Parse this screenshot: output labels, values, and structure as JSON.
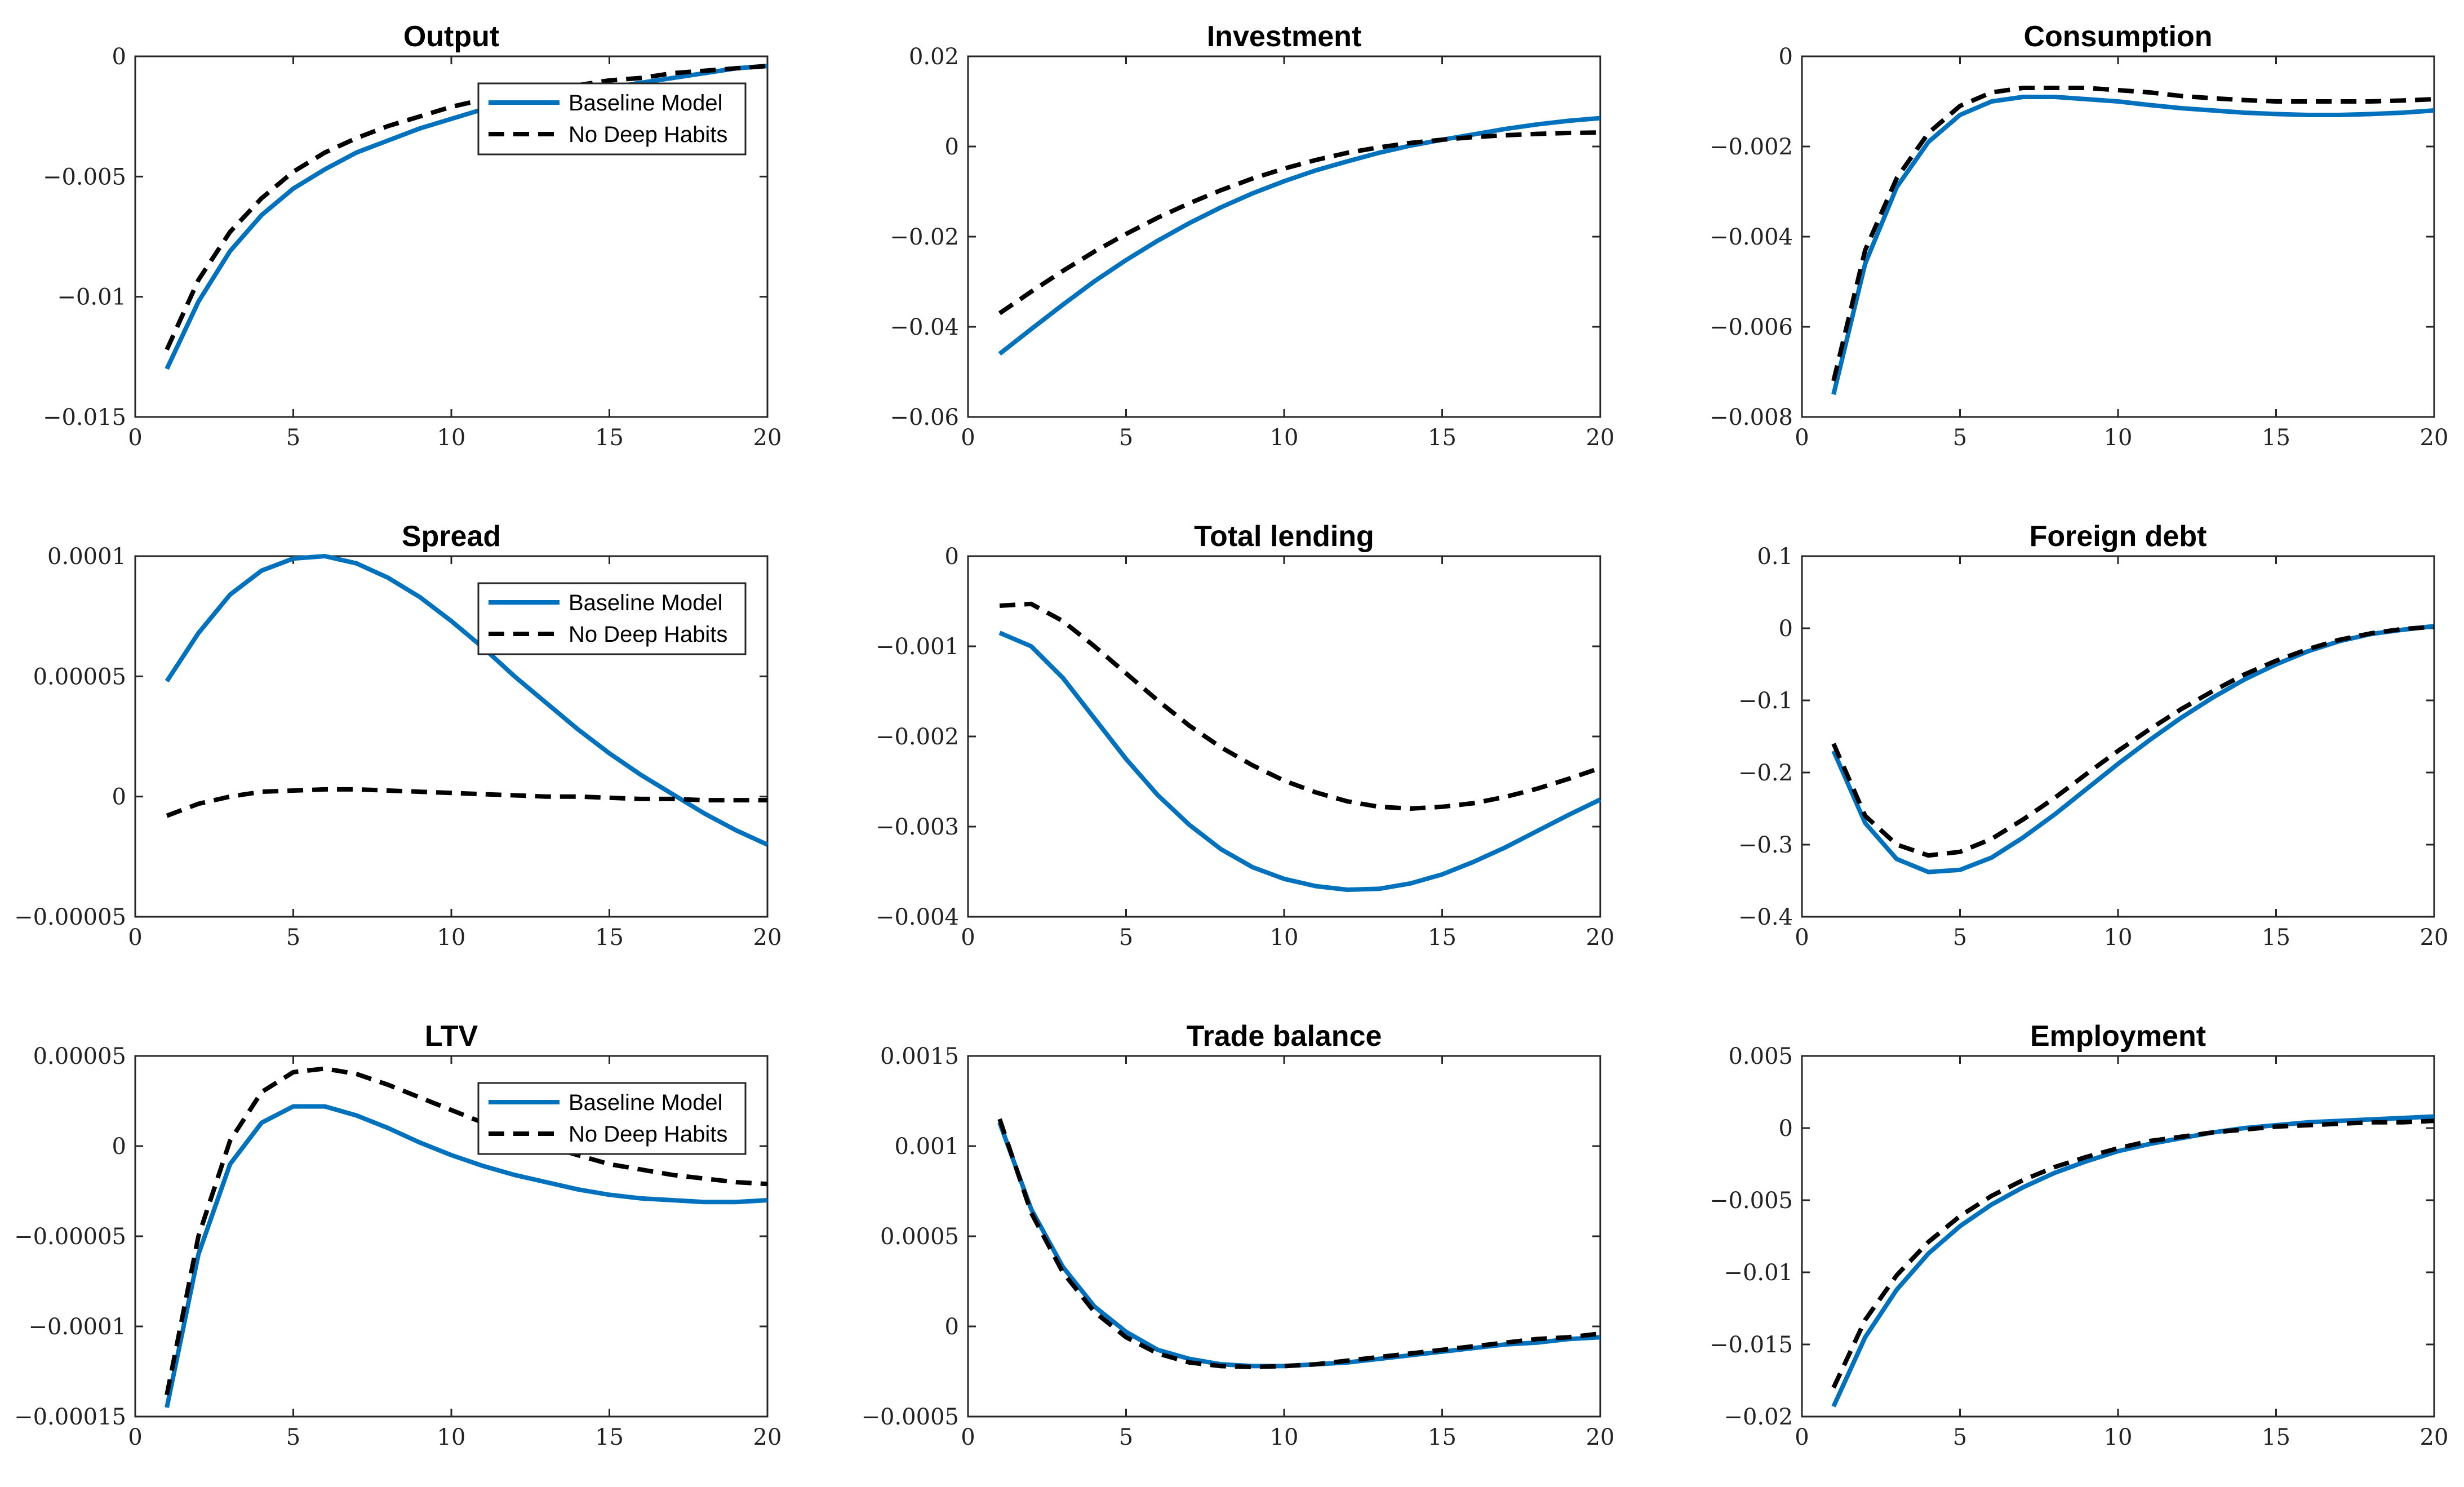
{
  "chart_data": [
    {
      "type": "line",
      "title": "Output",
      "xlim": [
        0,
        20
      ],
      "ylim": [
        -0.015,
        0
      ],
      "x_ticks": [
        0,
        5,
        10,
        15,
        20
      ],
      "x_tick_labels": [
        "0",
        "5",
        "10",
        "15",
        "20"
      ],
      "y_ticks": [
        0,
        -0.005,
        -0.01,
        -0.015
      ],
      "y_tick_labels": [
        "0",
        "−0.005",
        "−0.01",
        "−0.015"
      ],
      "legend": true,
      "legend_position": "top-right",
      "x": [
        1,
        2,
        3,
        4,
        5,
        6,
        7,
        8,
        9,
        10,
        11,
        12,
        13,
        14,
        15,
        16,
        17,
        18,
        19,
        20
      ],
      "series": [
        {
          "name": "Baseline Model",
          "color": "#0072BD",
          "dash": "solid",
          "values": [
            -0.013,
            -0.0102,
            -0.0081,
            -0.0066,
            -0.0055,
            -0.0047,
            -0.004,
            -0.0035,
            -0.003,
            -0.0026,
            -0.0022,
            -0.0019,
            -0.0017,
            -0.0015,
            -0.0013,
            -0.0011,
            -0.0009,
            -0.0007,
            -0.0005,
            -0.0004
          ]
        },
        {
          "name": "No Deep Habits",
          "color": "#000000",
          "dash": "dashed",
          "values": [
            -0.0122,
            -0.0093,
            -0.0073,
            -0.0059,
            -0.0048,
            -0.004,
            -0.0034,
            -0.0029,
            -0.0025,
            -0.0021,
            -0.0018,
            -0.0016,
            -0.0014,
            -0.0012,
            -0.001,
            -0.0009,
            -0.0007,
            -0.0006,
            -0.0005,
            -0.0004
          ]
        }
      ]
    },
    {
      "type": "line",
      "title": "Investment",
      "xlim": [
        0,
        20
      ],
      "ylim": [
        -0.06,
        0.02
      ],
      "x_ticks": [
        0,
        5,
        10,
        15,
        20
      ],
      "x_tick_labels": [
        "0",
        "5",
        "10",
        "15",
        "20"
      ],
      "y_ticks": [
        0.02,
        0,
        -0.02,
        -0.04,
        -0.06
      ],
      "y_tick_labels": [
        "0.02",
        "0",
        "−0.02",
        "−0.04",
        "−0.06"
      ],
      "legend": false,
      "x": [
        1,
        2,
        3,
        4,
        5,
        6,
        7,
        8,
        9,
        10,
        11,
        12,
        13,
        14,
        15,
        16,
        17,
        18,
        19,
        20
      ],
      "series": [
        {
          "name": "Baseline Model",
          "color": "#0072BD",
          "dash": "solid",
          "values": [
            -0.046,
            -0.0405,
            -0.0351,
            -0.0299,
            -0.0252,
            -0.0209,
            -0.017,
            -0.0135,
            -0.0104,
            -0.0077,
            -0.0053,
            -0.0033,
            -0.0014,
            0.0002,
            0.0015,
            0.0027,
            0.0039,
            0.0049,
            0.0057,
            0.0063
          ]
        },
        {
          "name": "No Deep Habits",
          "color": "#000000",
          "dash": "dashed",
          "values": [
            -0.037,
            -0.0322,
            -0.0276,
            -0.0233,
            -0.0194,
            -0.0158,
            -0.0126,
            -0.0097,
            -0.0071,
            -0.0049,
            -0.003,
            -0.0014,
            -0.0002,
            0.0008,
            0.0015,
            0.0021,
            0.0025,
            0.0028,
            0.003,
            0.0031
          ]
        }
      ]
    },
    {
      "type": "line",
      "title": "Consumption",
      "xlim": [
        0,
        20
      ],
      "ylim": [
        -0.008,
        0
      ],
      "x_ticks": [
        0,
        5,
        10,
        15,
        20
      ],
      "x_tick_labels": [
        "0",
        "5",
        "10",
        "15",
        "20"
      ],
      "y_ticks": [
        0,
        -0.002,
        -0.004,
        -0.006,
        -0.008
      ],
      "y_tick_labels": [
        "0",
        "−0.002",
        "−0.004",
        "−0.006",
        "−0.008"
      ],
      "legend": false,
      "x": [
        1,
        2,
        3,
        4,
        5,
        6,
        7,
        8,
        9,
        10,
        11,
        12,
        13,
        14,
        15,
        16,
        17,
        18,
        19,
        20
      ],
      "series": [
        {
          "name": "Baseline Model",
          "color": "#0072BD",
          "dash": "solid",
          "values": [
            -0.0075,
            -0.0046,
            -0.0029,
            -0.0019,
            -0.0013,
            -0.001,
            -0.0009,
            -0.0009,
            -0.00095,
            -0.001,
            -0.00108,
            -0.00115,
            -0.0012,
            -0.00125,
            -0.00128,
            -0.0013,
            -0.0013,
            -0.00128,
            -0.00125,
            -0.0012
          ]
        },
        {
          "name": "No Deep Habits",
          "color": "#000000",
          "dash": "dashed",
          "values": [
            -0.0072,
            -0.0043,
            -0.0027,
            -0.0017,
            -0.0011,
            -0.0008,
            -0.0007,
            -0.0007,
            -0.0007,
            -0.00075,
            -0.0008,
            -0.00088,
            -0.00093,
            -0.00097,
            -0.001,
            -0.001,
            -0.001,
            -0.001,
            -0.00098,
            -0.00095
          ]
        }
      ]
    },
    {
      "type": "line",
      "title": "Spread",
      "xlim": [
        0,
        20
      ],
      "ylim": [
        -5e-05,
        0.0001
      ],
      "x_ticks": [
        0,
        5,
        10,
        15,
        20
      ],
      "x_tick_labels": [
        "0",
        "5",
        "10",
        "15",
        "20"
      ],
      "y_ticks": [
        0.0001,
        5e-05,
        0,
        -5e-05
      ],
      "y_tick_labels": [
        "0.0001",
        "0.00005",
        "0",
        "−0.00005"
      ],
      "legend": true,
      "legend_position": "top-right",
      "x": [
        1,
        2,
        3,
        4,
        5,
        6,
        7,
        8,
        9,
        10,
        11,
        12,
        13,
        14,
        15,
        16,
        17,
        18,
        19,
        20
      ],
      "series": [
        {
          "name": "Baseline Model",
          "color": "#0072BD",
          "dash": "solid",
          "values": [
            4.8e-05,
            6.8e-05,
            8.4e-05,
            9.4e-05,
            9.9e-05,
            0.0001,
            9.7e-05,
            9.1e-05,
            8.3e-05,
            7.3e-05,
            6.2e-05,
            5e-05,
            3.9e-05,
            2.8e-05,
            1.8e-05,
            9e-06,
            1e-06,
            -7e-06,
            -1.4e-05,
            -2e-05
          ]
        },
        {
          "name": "No Deep Habits",
          "color": "#000000",
          "dash": "dashed",
          "values": [
            -8e-06,
            -3e-06,
            0.0,
            2e-06,
            2.5e-06,
            3e-06,
            3e-06,
            2.5e-06,
            2e-06,
            1.5e-06,
            1e-06,
            5e-07,
            0.0,
            0.0,
            -5e-07,
            -1e-06,
            -1e-06,
            -1.5e-06,
            -1.5e-06,
            -1.5e-06
          ]
        }
      ]
    },
    {
      "type": "line",
      "title": "Total lending",
      "xlim": [
        0,
        20
      ],
      "ylim": [
        -0.004,
        0
      ],
      "x_ticks": [
        0,
        5,
        10,
        15,
        20
      ],
      "x_tick_labels": [
        "0",
        "5",
        "10",
        "15",
        "20"
      ],
      "y_ticks": [
        0,
        -0.001,
        -0.002,
        -0.003,
        -0.004
      ],
      "y_tick_labels": [
        "0",
        "−0.001",
        "−0.002",
        "−0.003",
        "−0.004"
      ],
      "legend": false,
      "x": [
        1,
        2,
        3,
        4,
        5,
        6,
        7,
        8,
        9,
        10,
        11,
        12,
        13,
        14,
        15,
        16,
        17,
        18,
        19,
        20
      ],
      "series": [
        {
          "name": "Baseline Model",
          "color": "#0072BD",
          "dash": "solid",
          "values": [
            -0.00085,
            -0.001,
            -0.00135,
            -0.0018,
            -0.00225,
            -0.00265,
            -0.00298,
            -0.00325,
            -0.00345,
            -0.00358,
            -0.00366,
            -0.0037,
            -0.00369,
            -0.00363,
            -0.00353,
            -0.00339,
            -0.00323,
            -0.00305,
            -0.00287,
            -0.0027
          ]
        },
        {
          "name": "No Deep Habits",
          "color": "#000000",
          "dash": "dashed",
          "values": [
            -0.00055,
            -0.00053,
            -0.00072,
            -0.001,
            -0.0013,
            -0.0016,
            -0.00188,
            -0.00212,
            -0.00232,
            -0.00249,
            -0.00262,
            -0.00272,
            -0.00278,
            -0.0028,
            -0.00278,
            -0.00274,
            -0.00267,
            -0.00258,
            -0.00247,
            -0.00235
          ]
        }
      ]
    },
    {
      "type": "line",
      "title": "Foreign debt",
      "xlim": [
        0,
        20
      ],
      "ylim": [
        -0.4,
        0.1
      ],
      "x_ticks": [
        0,
        5,
        10,
        15,
        20
      ],
      "x_tick_labels": [
        "0",
        "5",
        "10",
        "15",
        "20"
      ],
      "y_ticks": [
        0.1,
        0,
        -0.1,
        -0.2,
        -0.3,
        -0.4
      ],
      "y_tick_labels": [
        "0.1",
        "0",
        "−0.1",
        "−0.2",
        "−0.3",
        "−0.4"
      ],
      "legend": false,
      "x": [
        1,
        2,
        3,
        4,
        5,
        6,
        7,
        8,
        9,
        10,
        11,
        12,
        13,
        14,
        15,
        16,
        17,
        18,
        19,
        20
      ],
      "series": [
        {
          "name": "Baseline Model",
          "color": "#0072BD",
          "dash": "solid",
          "values": [
            -0.17,
            -0.27,
            -0.32,
            -0.338,
            -0.335,
            -0.318,
            -0.29,
            -0.258,
            -0.223,
            -0.188,
            -0.155,
            -0.124,
            -0.096,
            -0.071,
            -0.05,
            -0.032,
            -0.018,
            -0.008,
            -0.002,
            0.003
          ]
        },
        {
          "name": "No Deep Habits",
          "color": "#000000",
          "dash": "dashed",
          "values": [
            -0.16,
            -0.26,
            -0.3,
            -0.315,
            -0.31,
            -0.292,
            -0.265,
            -0.235,
            -0.202,
            -0.17,
            -0.14,
            -0.112,
            -0.087,
            -0.064,
            -0.045,
            -0.029,
            -0.016,
            -0.007,
            -0.001,
            0.002
          ]
        }
      ]
    },
    {
      "type": "line",
      "title": "LTV",
      "xlim": [
        0,
        20
      ],
      "ylim": [
        -0.00015,
        5e-05
      ],
      "x_ticks": [
        0,
        5,
        10,
        15,
        20
      ],
      "x_tick_labels": [
        "0",
        "5",
        "10",
        "15",
        "20"
      ],
      "y_ticks": [
        5e-05,
        0,
        -5e-05,
        -0.0001,
        -0.00015
      ],
      "y_tick_labels": [
        "0.00005",
        "0",
        "−0.00005",
        "−0.0001",
        "−0.00015"
      ],
      "legend": true,
      "legend_position": "top-right",
      "x": [
        1,
        2,
        3,
        4,
        5,
        6,
        7,
        8,
        9,
        10,
        11,
        12,
        13,
        14,
        15,
        16,
        17,
        18,
        19,
        20
      ],
      "series": [
        {
          "name": "Baseline Model",
          "color": "#0072BD",
          "dash": "solid",
          "values": [
            -0.000145,
            -6e-05,
            -1e-05,
            1.3e-05,
            2.2e-05,
            2.2e-05,
            1.7e-05,
            1e-05,
            2e-06,
            -5e-06,
            -1.1e-05,
            -1.6e-05,
            -2e-05,
            -2.4e-05,
            -2.7e-05,
            -2.9e-05,
            -3e-05,
            -3.1e-05,
            -3.1e-05,
            -3e-05
          ]
        },
        {
          "name": "No Deep Habits",
          "color": "#000000",
          "dash": "dashed",
          "values": [
            -0.000138,
            -5e-05,
            3e-06,
            3e-05,
            4.1e-05,
            4.3e-05,
            4e-05,
            3.4e-05,
            2.7e-05,
            2e-05,
            1.3e-05,
            6e-06,
            0.0,
            -5e-06,
            -1e-05,
            -1.3e-05,
            -1.6e-05,
            -1.8e-05,
            -2e-05,
            -2.1e-05
          ]
        }
      ]
    },
    {
      "type": "line",
      "title": "Trade balance",
      "xlim": [
        0,
        20
      ],
      "ylim": [
        -0.0005,
        0.0015
      ],
      "x_ticks": [
        0,
        5,
        10,
        15,
        20
      ],
      "x_tick_labels": [
        "0",
        "5",
        "10",
        "15",
        "20"
      ],
      "y_ticks": [
        0.0015,
        0.001,
        0.0005,
        0,
        -0.0005
      ],
      "y_tick_labels": [
        "0.0015",
        "0.001",
        "0.0005",
        "0",
        "−0.0005"
      ],
      "legend": false,
      "x": [
        1,
        2,
        3,
        4,
        5,
        6,
        7,
        8,
        9,
        10,
        11,
        12,
        13,
        14,
        15,
        16,
        17,
        18,
        19,
        20
      ],
      "series": [
        {
          "name": "Baseline Model",
          "color": "#0072BD",
          "dash": "solid",
          "values": [
            0.00113,
            0.00065,
            0.00033,
            0.00011,
            -3e-05,
            -0.00013,
            -0.00018,
            -0.00021,
            -0.00022,
            -0.00022,
            -0.00021,
            -0.0002,
            -0.00018,
            -0.00016,
            -0.00014,
            -0.00012,
            -0.0001,
            -9e-05,
            -7e-05,
            -6e-05
          ]
        },
        {
          "name": "No Deep Habits",
          "color": "#000000",
          "dash": "dashed",
          "values": [
            0.00115,
            0.00063,
            0.0003,
            8e-05,
            -6e-05,
            -0.00015,
            -0.0002,
            -0.00022,
            -0.000225,
            -0.00022,
            -0.00021,
            -0.00019,
            -0.00017,
            -0.00015,
            -0.00013,
            -0.00011,
            -9e-05,
            -7e-05,
            -6e-05,
            -4e-05
          ]
        }
      ]
    },
    {
      "type": "line",
      "title": "Employment",
      "xlim": [
        0,
        20
      ],
      "ylim": [
        -0.02,
        0.005
      ],
      "x_ticks": [
        0,
        5,
        10,
        15,
        20
      ],
      "x_tick_labels": [
        "0",
        "5",
        "10",
        "15",
        "20"
      ],
      "y_ticks": [
        0.005,
        0,
        -0.005,
        -0.01,
        -0.015,
        -0.02
      ],
      "y_tick_labels": [
        "0.005",
        "0",
        "−0.005",
        "−0.01",
        "−0.015",
        "−0.02"
      ],
      "legend": false,
      "x": [
        1,
        2,
        3,
        4,
        5,
        6,
        7,
        8,
        9,
        10,
        11,
        12,
        13,
        14,
        15,
        16,
        17,
        18,
        19,
        20
      ],
      "series": [
        {
          "name": "Baseline Model",
          "color": "#0072BD",
          "dash": "solid",
          "values": [
            -0.0193,
            -0.0145,
            -0.0112,
            -0.0087,
            -0.0068,
            -0.0053,
            -0.0041,
            -0.0031,
            -0.0023,
            -0.0016,
            -0.0011,
            -0.0007,
            -0.0003,
            0.0,
            0.0002,
            0.0004,
            0.0005,
            0.0006,
            0.0007,
            0.0008
          ]
        },
        {
          "name": "No Deep Habits",
          "color": "#000000",
          "dash": "dashed",
          "values": [
            -0.018,
            -0.0133,
            -0.0102,
            -0.0079,
            -0.0061,
            -0.0047,
            -0.0036,
            -0.0027,
            -0.002,
            -0.0014,
            -0.0009,
            -0.0006,
            -0.0003,
            -0.0001,
            0.0001,
            0.0002,
            0.0003,
            0.0004,
            0.0004,
            0.0005
          ]
        }
      ]
    }
  ]
}
